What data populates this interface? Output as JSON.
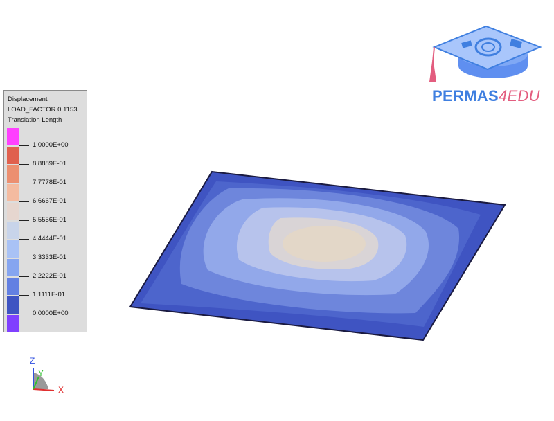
{
  "legend": {
    "title1": "Displacement",
    "title2": "LOAD_FACTOR 0.1153",
    "title3": "Translation Length",
    "levels": [
      {
        "label": "1.0000E+00",
        "color": "#ff40ff"
      },
      {
        "label": "8.8889E-01",
        "color": "#e0604e"
      },
      {
        "label": "7.7778E-01",
        "color": "#ec8f70"
      },
      {
        "label": "6.6667E-01",
        "color": "#f4bba0"
      },
      {
        "label": "5.5556E-01",
        "color": "#e6d6cf"
      },
      {
        "label": "4.4444E-01",
        "color": "#c8d4ea"
      },
      {
        "label": "3.3333E-01",
        "color": "#a9c2f5"
      },
      {
        "label": "2.2222E-01",
        "color": "#86a5f0"
      },
      {
        "label": "1.1111E-01",
        "color": "#6380e2"
      },
      {
        "label": "0.0000E+00",
        "color": "#3f54c2"
      }
    ],
    "bottom_color": "#8040ff"
  },
  "logo": {
    "text_main": "PERMAS",
    "text_accent": "4EDU",
    "icon": "graduation-cap-icon",
    "color_main": "#3f7fe0",
    "color_accent": "#e35d7f"
  },
  "triad": {
    "x_label": "X",
    "y_label": "Y",
    "z_label": "Z",
    "x_color": "#e03030",
    "y_color": "#30c030",
    "z_color": "#3050e0"
  },
  "model": {
    "plate_color": "#3f54c2"
  }
}
